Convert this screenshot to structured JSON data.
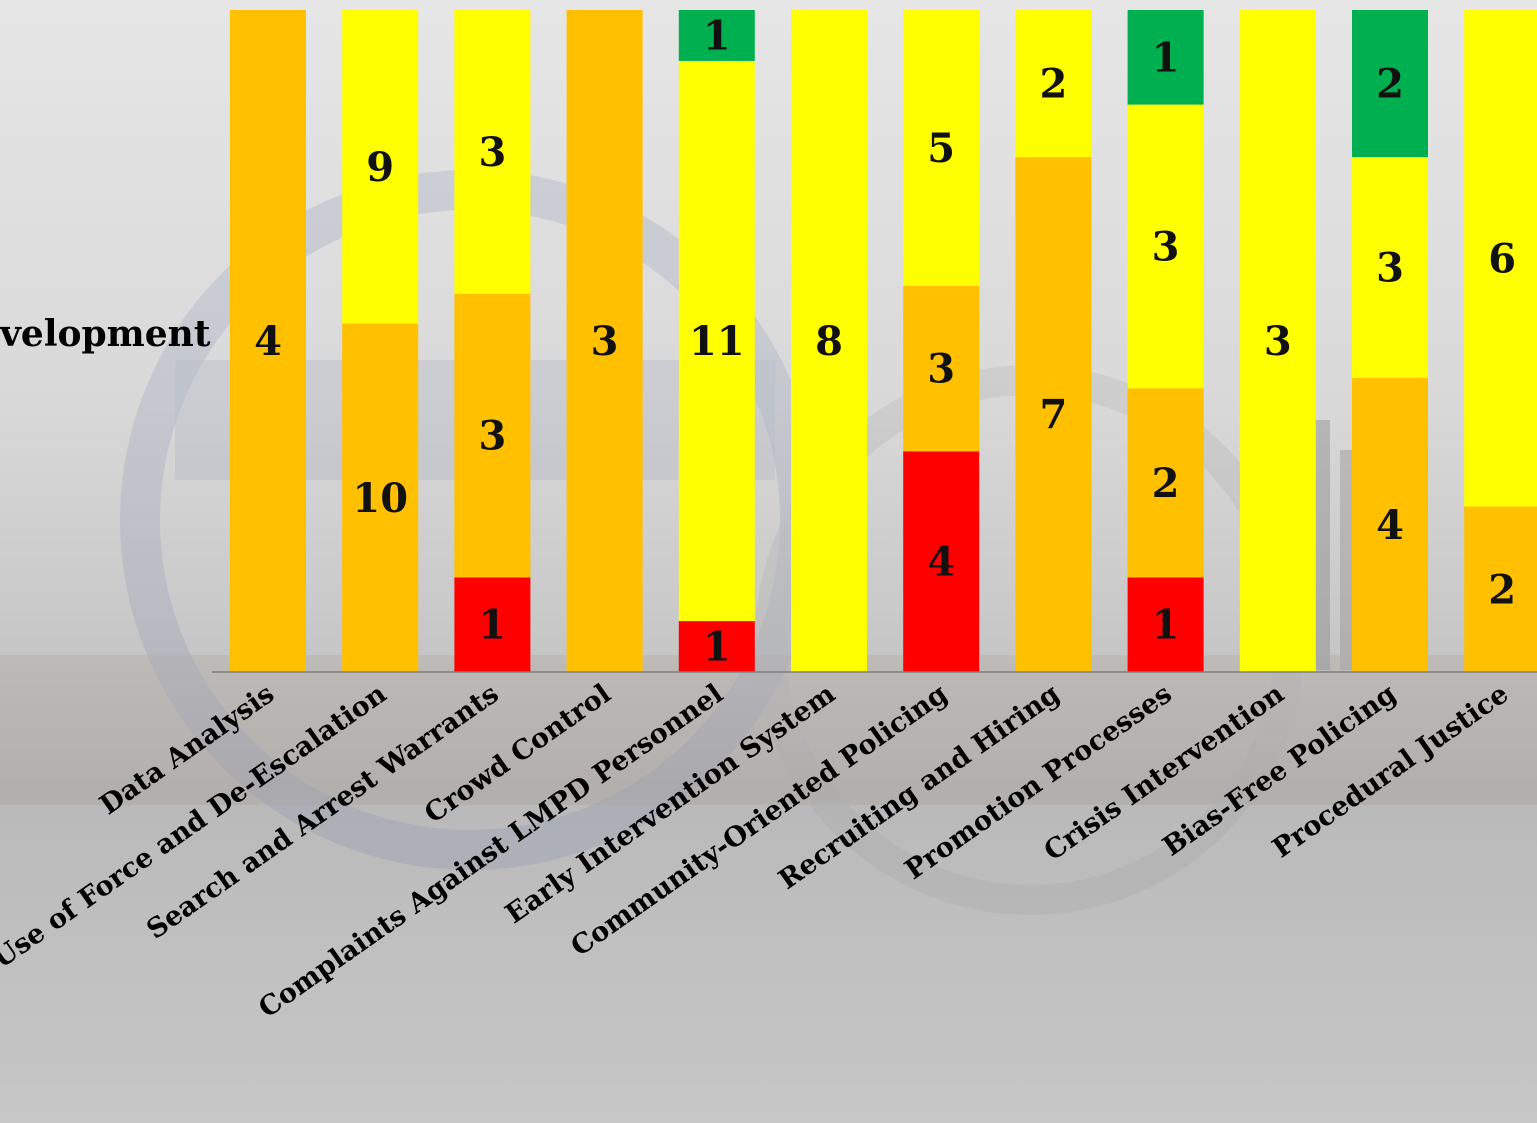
{
  "side_label": "velopment",
  "chart_data": {
    "type": "bar",
    "stacked": true,
    "normalized": true,
    "categories": [
      "Data Analysis",
      "Use of Force and De-Escalation",
      "Search and Arrest Warrants",
      "Crowd Control",
      "Complaints Against LMPD Personnel",
      "Early Intervention System",
      "Community-Oriented Policing",
      "Recruiting and Hiring",
      "Promotion Processes",
      "Crisis Intervention",
      "Bias-Free Policing",
      "Procedural Justice"
    ],
    "series": [
      {
        "color": "#ff0000",
        "values": [
          0,
          0,
          1,
          0,
          1,
          0,
          4,
          0,
          1,
          0,
          0,
          0
        ]
      },
      {
        "color": "#ffc000",
        "values": [
          4,
          10,
          3,
          3,
          0,
          0,
          3,
          7,
          2,
          0,
          4,
          2
        ]
      },
      {
        "color": "#ffff00",
        "values": [
          0,
          9,
          3,
          0,
          11,
          8,
          5,
          2,
          3,
          3,
          3,
          6
        ]
      },
      {
        "color": "#00b050",
        "values": [
          0,
          0,
          0,
          0,
          1,
          0,
          0,
          0,
          1,
          0,
          2,
          0
        ]
      }
    ],
    "legend": "none",
    "grid": false
  }
}
